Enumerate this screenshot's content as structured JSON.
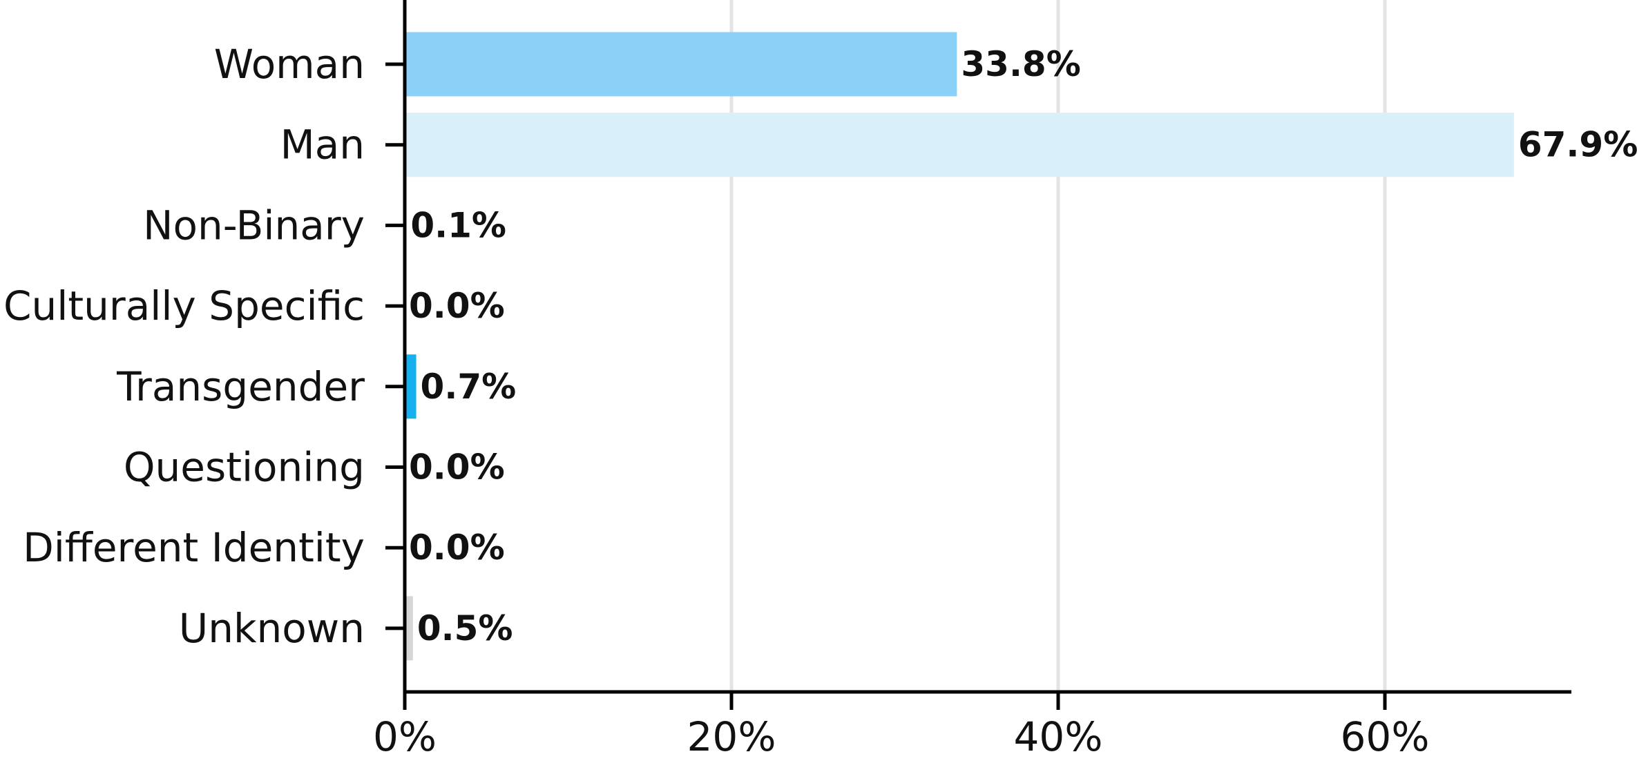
{
  "chart_data": {
    "type": "bar",
    "orientation": "horizontal",
    "categories": [
      "Woman",
      "Man",
      "Non-Binary",
      "Culturally Specific",
      "Transgender",
      "Questioning",
      "Different Identity",
      "Unknown"
    ],
    "values": [
      33.8,
      67.9,
      0.1,
      0.0,
      0.7,
      0.0,
      0.0,
      0.5
    ],
    "data_labels": [
      "33.8%",
      "67.9%",
      "0.1%",
      "0.0%",
      "0.7%",
      "0.0%",
      "0.0%",
      "0.5%"
    ],
    "colors": [
      "#8bd0f7",
      "#d9f0fb",
      "#6ec0ee",
      "#4fb0e6",
      "#16b0f0",
      "#9ed8f8",
      "#b8e2f8",
      "#d6d6d6"
    ],
    "xticks": [
      0,
      20,
      40,
      60
    ],
    "xtick_labels": [
      "0%",
      "20%",
      "40%",
      "60%"
    ],
    "xlim": [
      0,
      71.5
    ],
    "title": "",
    "xlabel": "",
    "ylabel": "",
    "grid": "vertical",
    "grid_color": "#e3e3e3",
    "axis_color": "#000000"
  }
}
